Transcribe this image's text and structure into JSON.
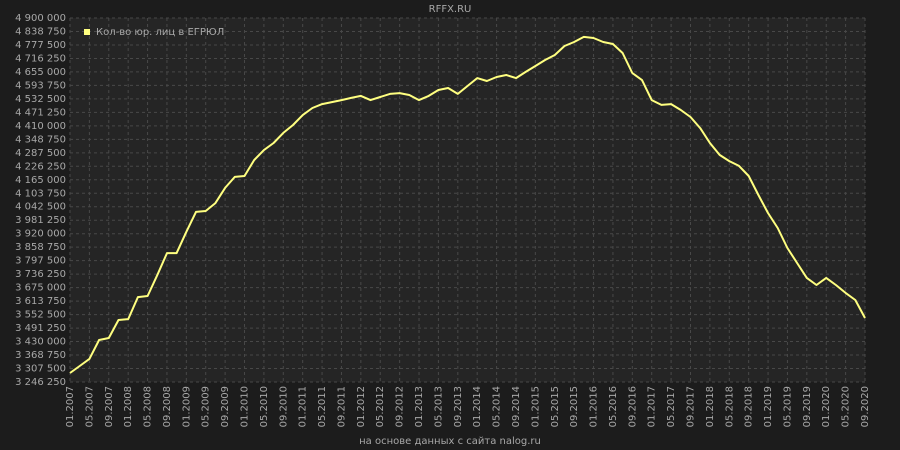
{
  "chart_data": {
    "type": "line",
    "title": "RFFX.RU",
    "source": "на основе данных с сайта nalog.ru",
    "categories": [
      "01.2007",
      null,
      "05.2007",
      null,
      "09.2007",
      null,
      "01.2008",
      null,
      "05.2008",
      null,
      "09.2008",
      null,
      "01.2009",
      null,
      "05.2009",
      null,
      "09.2009",
      null,
      "01.2010",
      null,
      "05.2010",
      null,
      "09.2010",
      null,
      "01.2011",
      null,
      "05.2011",
      null,
      "09.2011",
      null,
      "01.2012",
      null,
      "05.2012",
      null,
      "09.2012",
      null,
      "01.2013",
      null,
      "05.2013",
      null,
      "09.2013",
      null,
      "01.2014",
      null,
      "05.2014",
      null,
      "09.2014",
      null,
      "01.2015",
      null,
      "05.2015",
      null,
      "09.2015",
      null,
      "01.2016",
      null,
      "05.2016",
      null,
      "09.2016",
      null,
      "01.2017",
      null,
      "05.2017",
      null,
      "09.2017",
      null,
      "01.2018",
      null,
      "05.2018",
      null,
      "09.2018",
      null,
      "01.2019",
      null,
      "05.2019",
      null,
      "09.2019",
      null,
      "01.2020",
      null,
      "05.2020",
      null,
      "09.2020"
    ],
    "series": [
      {
        "name": "Кол-во юр. лиц в ЕГРЮЛ",
        "color": "#ffff80",
        "values": [
          3287000,
          3319000,
          3351000,
          3437000,
          3446000,
          3528000,
          3532000,
          3632000,
          3637000,
          3732000,
          3832000,
          3832000,
          3928000,
          4019000,
          4023000,
          4059000,
          4128000,
          4178000,
          4182000,
          4255000,
          4300000,
          4332000,
          4378000,
          4414000,
          4459000,
          4491000,
          4509000,
          4518000,
          4527000,
          4537000,
          4546000,
          4527000,
          4541000,
          4555000,
          4559000,
          4550000,
          4527000,
          4546000,
          4573000,
          4582000,
          4555000,
          4591000,
          4627000,
          4614000,
          4632000,
          4641000,
          4627000,
          4655000,
          4682000,
          4709000,
          4732000,
          4773000,
          4791000,
          4814000,
          4809000,
          4791000,
          4782000,
          4741000,
          4650000,
          4618000,
          4527000,
          4505000,
          4509000,
          4482000,
          4450000,
          4400000,
          4332000,
          4278000,
          4250000,
          4228000,
          4182000,
          4096000,
          4014000,
          3946000,
          3855000,
          3787000,
          3719000,
          3687000,
          3719000,
          3687000,
          3651000,
          3619000,
          3537000
        ]
      }
    ],
    "ylim": [
      3246250,
      4900000
    ],
    "yticks": [
      {
        "value": 3246250,
        "label": "3 246 250"
      },
      {
        "value": 3307500,
        "label": "3 307 500"
      },
      {
        "value": 3368750,
        "label": "3 368 750"
      },
      {
        "value": 3430000,
        "label": "3 430 000"
      },
      {
        "value": 3491250,
        "label": "3 491 250"
      },
      {
        "value": 3552500,
        "label": "3 552 500"
      },
      {
        "value": 3613750,
        "label": "3 613 750"
      },
      {
        "value": 3675000,
        "label": "3 675 000"
      },
      {
        "value": 3736250,
        "label": "3 736 250"
      },
      {
        "value": 3797500,
        "label": "3 797 500"
      },
      {
        "value": 3858750,
        "label": "3 858 750"
      },
      {
        "value": 3920000,
        "label": "3 920 000"
      },
      {
        "value": 3981250,
        "label": "3 981 250"
      },
      {
        "value": 4042500,
        "label": "4 042 500"
      },
      {
        "value": 4103750,
        "label": "4 103 750"
      },
      {
        "value": 4165000,
        "label": "4 165 000"
      },
      {
        "value": 4226250,
        "label": "4 226 250"
      },
      {
        "value": 4287500,
        "label": "4 287 500"
      },
      {
        "value": 4348750,
        "label": "4 348 750"
      },
      {
        "value": 4410000,
        "label": "4 410 000"
      },
      {
        "value": 4471250,
        "label": "4 471 250"
      },
      {
        "value": 4532500,
        "label": "4 532 500"
      },
      {
        "value": 4593750,
        "label": "4 593 750"
      },
      {
        "value": 4655000,
        "label": "4 655 000"
      },
      {
        "value": 4716250,
        "label": "4 716 250"
      },
      {
        "value": 4777500,
        "label": "4 777 500"
      },
      {
        "value": 4838750,
        "label": "4 838 750"
      },
      {
        "value": 4900000,
        "label": "4 900 000"
      }
    ],
    "grid": true,
    "legend": "upper left"
  }
}
